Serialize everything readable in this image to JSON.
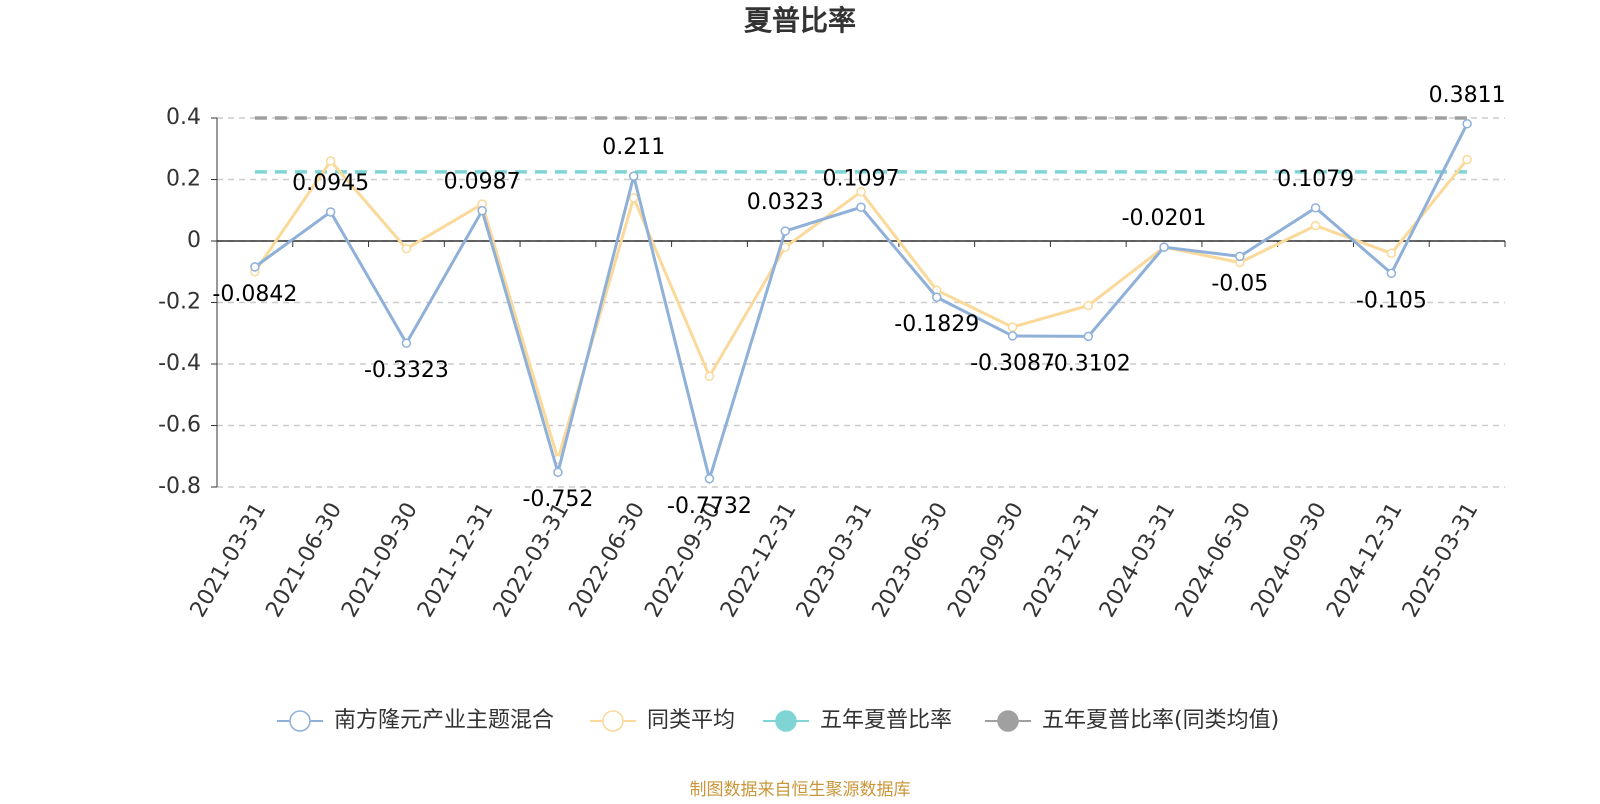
{
  "chart_data": {
    "type": "line",
    "title": "夏普比率",
    "categories": [
      "2021-03-31",
      "2021-06-30",
      "2021-09-30",
      "2021-12-31",
      "2022-03-31",
      "2022-06-30",
      "2022-09-30",
      "2022-12-31",
      "2023-03-31",
      "2023-06-30",
      "2023-09-30",
      "2023-12-31",
      "2024-03-31",
      "2024-06-30",
      "2024-09-30",
      "2024-12-31",
      "2025-03-31"
    ],
    "series": [
      {
        "name": "南方隆元产业主题混合",
        "color": "#8fb0d9",
        "values": [
          -0.0842,
          0.0945,
          -0.3323,
          0.0987,
          -0.752,
          0.211,
          -0.7732,
          0.0323,
          0.1097,
          -0.1829,
          -0.3087,
          -0.3102,
          -0.0201,
          -0.05,
          0.1079,
          -0.105,
          0.3811
        ]
      },
      {
        "name": "同类平均",
        "color": "#fad99a",
        "values": [
          -0.1,
          0.26,
          -0.025,
          0.12,
          -0.71,
          0.14,
          -0.44,
          -0.02,
          0.16,
          -0.16,
          -0.28,
          -0.21,
          -0.02,
          -0.07,
          0.05,
          -0.04,
          0.265
        ]
      },
      {
        "name": "五年夏普比率",
        "color": "#7fd4d4",
        "values": [
          0.225,
          0.225,
          0.225,
          0.225,
          0.225,
          0.225,
          0.225,
          0.225,
          0.225,
          0.225,
          0.225,
          0.225,
          0.225,
          0.225,
          0.225,
          0.225,
          0.225
        ]
      },
      {
        "name": "五年夏普比率(同类均值)",
        "color": "#a0a0a0",
        "values": [
          0.4,
          0.4,
          0.4,
          0.4,
          0.4,
          0.4,
          0.4,
          0.4,
          0.4,
          0.4,
          0.4,
          0.4,
          0.4,
          0.4,
          0.4,
          0.4,
          0.4
        ]
      }
    ],
    "ylim": [
      -0.8,
      0.4
    ],
    "yticks": [
      -0.8,
      -0.6,
      -0.4,
      -0.2,
      0,
      0.2,
      0.4
    ],
    "grid": true,
    "source": "制图数据来自恒生聚源数据库"
  }
}
